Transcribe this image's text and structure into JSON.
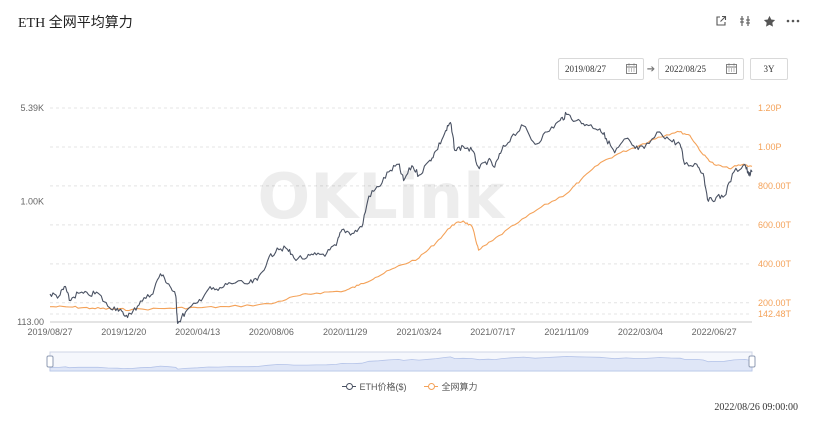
{
  "header": {
    "title": "ETH 全网平均算力",
    "tools": [
      "share-icon",
      "compare-icon",
      "star-icon",
      "more-icon"
    ]
  },
  "date_range": {
    "start": "2019/08/27",
    "end": "2022/08/25",
    "range_button": "3Y"
  },
  "watermark": "OKLink",
  "timestamp": "2022/08/26 09:00:00",
  "colors": {
    "price": "#4a5263",
    "hashrate": "#f4a259",
    "grid": "#e4e4e4",
    "navigator_fill": "#dfe6f7",
    "navigator_line": "#b4c3e8"
  },
  "chart_data": {
    "type": "line",
    "x_range": [
      "2019-08-27",
      "2022-08-25"
    ],
    "x_ticks": [
      "2019/08/27",
      "2019/12/20",
      "2020/04/13",
      "2020/08/06",
      "2020/11/29",
      "2021/03/24",
      "2021/07/17",
      "2021/11/09",
      "2022/03/04",
      "2022/06/27"
    ],
    "y_left": {
      "scale": "log",
      "ticks": [
        "5.39K",
        "1.00K",
        "113.00"
      ],
      "tick_values": [
        5390,
        1000,
        113
      ]
    },
    "y_right": {
      "scale": "linear",
      "ticks": [
        "1.20P",
        "1.00P",
        "800.00T",
        "600.00T",
        "400.00T",
        "200.00T",
        "142.48T"
      ],
      "tick_values": [
        1200,
        1000,
        800,
        600,
        400,
        200,
        142.48
      ],
      "unit": "TH/s"
    },
    "series": [
      {
        "name": "ETH价格($)",
        "axis": "left",
        "points": [
          [
            "2019-08-27",
            187
          ],
          [
            "2019-09-10",
            180
          ],
          [
            "2019-09-20",
            215
          ],
          [
            "2019-09-26",
            167
          ],
          [
            "2019-10-10",
            190
          ],
          [
            "2019-10-26",
            185
          ],
          [
            "2019-11-10",
            190
          ],
          [
            "2019-11-25",
            150
          ],
          [
            "2019-12-10",
            145
          ],
          [
            "2019-12-20",
            128
          ],
          [
            "2020-01-01",
            130
          ],
          [
            "2020-01-15",
            165
          ],
          [
            "2020-02-01",
            185
          ],
          [
            "2020-02-15",
            270
          ],
          [
            "2020-02-28",
            225
          ],
          [
            "2020-03-10",
            180
          ],
          [
            "2020-03-13",
            110
          ],
          [
            "2020-03-25",
            135
          ],
          [
            "2020-04-13",
            160
          ],
          [
            "2020-04-30",
            205
          ],
          [
            "2020-05-15",
            200
          ],
          [
            "2020-06-01",
            230
          ],
          [
            "2020-06-30",
            225
          ],
          [
            "2020-07-15",
            240
          ],
          [
            "2020-07-31",
            340
          ],
          [
            "2020-08-15",
            430
          ],
          [
            "2020-08-31",
            420
          ],
          [
            "2020-09-10",
            360
          ],
          [
            "2020-09-30",
            360
          ],
          [
            "2020-10-15",
            380
          ],
          [
            "2020-10-31",
            390
          ],
          [
            "2020-11-15",
            450
          ],
          [
            "2020-11-24",
            600
          ],
          [
            "2020-12-10",
            560
          ],
          [
            "2020-12-25",
            630
          ],
          [
            "2021-01-05",
            1100
          ],
          [
            "2021-01-20",
            1300
          ],
          [
            "2021-02-05",
            1700
          ],
          [
            "2021-02-20",
            1950
          ],
          [
            "2021-02-28",
            1450
          ],
          [
            "2021-03-13",
            1900
          ],
          [
            "2021-03-24",
            1600
          ],
          [
            "2021-04-10",
            2100
          ],
          [
            "2021-04-20",
            2500
          ],
          [
            "2021-05-03",
            3400
          ],
          [
            "2021-05-12",
            4150
          ],
          [
            "2021-05-19",
            2500
          ],
          [
            "2021-06-01",
            2700
          ],
          [
            "2021-06-15",
            2500
          ],
          [
            "2021-06-26",
            1800
          ],
          [
            "2021-07-10",
            2100
          ],
          [
            "2021-07-20",
            1850
          ],
          [
            "2021-07-31",
            2500
          ],
          [
            "2021-08-15",
            3200
          ],
          [
            "2021-09-03",
            3900
          ],
          [
            "2021-09-21",
            2800
          ],
          [
            "2021-10-10",
            3500
          ],
          [
            "2021-10-30",
            4300
          ],
          [
            "2021-11-09",
            4800
          ],
          [
            "2021-11-25",
            4300
          ],
          [
            "2021-12-10",
            4000
          ],
          [
            "2021-12-31",
            3700
          ],
          [
            "2022-01-10",
            3100
          ],
          [
            "2022-01-23",
            2400
          ],
          [
            "2022-02-10",
            3100
          ],
          [
            "2022-02-24",
            2600
          ],
          [
            "2022-03-10",
            2600
          ],
          [
            "2022-04-03",
            3500
          ],
          [
            "2022-04-20",
            3000
          ],
          [
            "2022-05-05",
            2800
          ],
          [
            "2022-05-12",
            1950
          ],
          [
            "2022-05-31",
            1950
          ],
          [
            "2022-06-10",
            1650
          ],
          [
            "2022-06-18",
            1000
          ],
          [
            "2022-06-30",
            1070
          ],
          [
            "2022-07-13",
            1100
          ],
          [
            "2022-07-28",
            1700
          ],
          [
            "2022-08-14",
            1950
          ],
          [
            "2022-08-20",
            1600
          ],
          [
            "2022-08-25",
            1700
          ]
        ]
      },
      {
        "name": "全网算力",
        "axis": "right",
        "points": [
          [
            "2019-08-27",
            180
          ],
          [
            "2019-10-01",
            178
          ],
          [
            "2019-11-01",
            172
          ],
          [
            "2019-12-01",
            168
          ],
          [
            "2020-01-01",
            165
          ],
          [
            "2020-03-01",
            172
          ],
          [
            "2020-04-13",
            175
          ],
          [
            "2020-06-01",
            180
          ],
          [
            "2020-08-06",
            195
          ],
          [
            "2020-09-15",
            235
          ],
          [
            "2020-10-15",
            250
          ],
          [
            "2020-11-29",
            262
          ],
          [
            "2020-12-20",
            290
          ],
          [
            "2021-01-15",
            330
          ],
          [
            "2021-02-15",
            380
          ],
          [
            "2021-03-24",
            430
          ],
          [
            "2021-04-20",
            510
          ],
          [
            "2021-05-15",
            600
          ],
          [
            "2021-06-01",
            620
          ],
          [
            "2021-06-15",
            590
          ],
          [
            "2021-06-25",
            470
          ],
          [
            "2021-07-17",
            520
          ],
          [
            "2021-08-20",
            600
          ],
          [
            "2021-09-30",
            690
          ],
          [
            "2021-11-09",
            760
          ],
          [
            "2021-12-01",
            830
          ],
          [
            "2022-01-01",
            920
          ],
          [
            "2022-02-01",
            970
          ],
          [
            "2022-03-04",
            1010
          ],
          [
            "2022-04-01",
            1050
          ],
          [
            "2022-05-01",
            1080
          ],
          [
            "2022-05-20",
            1060
          ],
          [
            "2022-06-10",
            960
          ],
          [
            "2022-06-27",
            910
          ],
          [
            "2022-07-20",
            890
          ],
          [
            "2022-08-10",
            910
          ],
          [
            "2022-08-25",
            900
          ]
        ]
      }
    ],
    "legend": [
      "ETH价格($)",
      "全网算力"
    ],
    "legend_position": "bottom-center",
    "grid": true,
    "navigator": true
  }
}
